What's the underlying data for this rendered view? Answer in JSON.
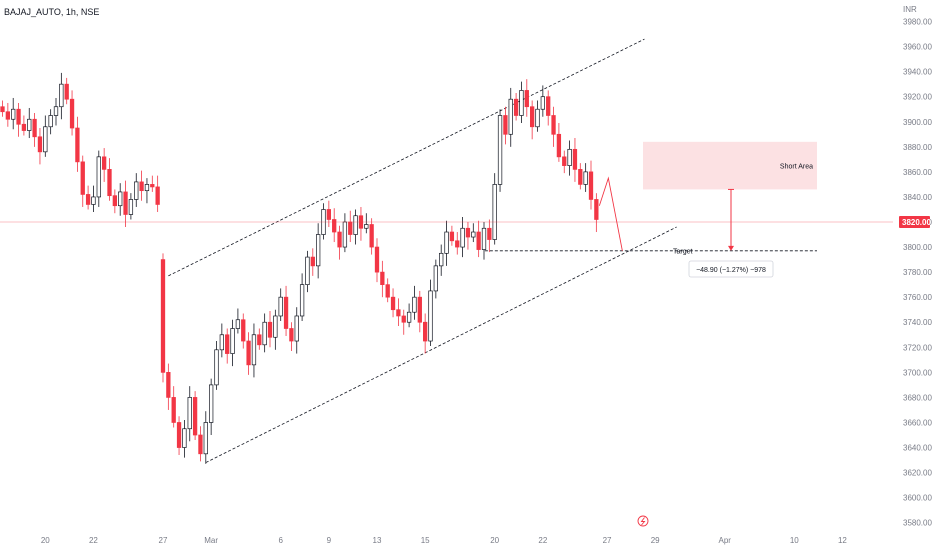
{
  "header": {
    "symbol": "BAJAJ_AUTO, 1h, NSE",
    "currency": "INR"
  },
  "colors": {
    "up": "#ffffff",
    "up_border": "#131722",
    "down": "#f23645",
    "zone": "#fbd7da",
    "current": "#f23645"
  },
  "chart_data": {
    "type": "candlestick",
    "title": "BAJAJ_AUTO, 1h, NSE",
    "ylabel": "INR",
    "ylim": [
      3570,
      3990
    ],
    "y_ticks": [
      3980,
      3960,
      3940,
      3920,
      3900,
      3880,
      3860,
      3840,
      3820,
      3800,
      3780,
      3760,
      3740,
      3720,
      3700,
      3680,
      3660,
      3640,
      3620,
      3600,
      3580
    ],
    "y_tick_labels": [
      "3980.00",
      "3960.00",
      "3940.00",
      "3920.00",
      "3900.00",
      "3880.00",
      "3860.00",
      "3840.00",
      "3820.00",
      "3800.00",
      "3780.00",
      "3760.00",
      "3740.00",
      "3720.00",
      "3700.00",
      "3680.00",
      "3660.00",
      "3640.00",
      "3620.00",
      "3600.00",
      "3580.00"
    ],
    "x_tick_labels": [
      "20",
      "22",
      "27",
      "Mar",
      "6",
      "9",
      "13",
      "15",
      "20",
      "22",
      "27",
      "29",
      "Apr",
      "10",
      "12"
    ],
    "x_tick_index": [
      8,
      17,
      30,
      39,
      52,
      61,
      70,
      79,
      92,
      101,
      113,
      122,
      135,
      148,
      157
    ],
    "current_price": 3820,
    "current_price_label": "3820.00",
    "annotations": {
      "zone_label": "Short Area",
      "zone_range": [
        3846,
        3884
      ],
      "target_label": "Target",
      "target_price": 3797,
      "measure_label": "−48.90 (−1.27%) −978"
    },
    "channel": {
      "upper": {
        "from": [
          31,
          3777
        ],
        "to": [
          120,
          3966
        ]
      },
      "lower": {
        "from": [
          38,
          3628
        ],
        "to": [
          126,
          3816
        ]
      }
    },
    "candles": [
      [
        3912,
        3908
      ],
      [
        3908,
        3902
      ],
      [
        3902,
        3910
      ],
      [
        3910,
        3898
      ],
      [
        3898,
        3893
      ],
      [
        3893,
        3902
      ],
      [
        3902,
        3888
      ],
      [
        3888,
        3876
      ],
      [
        3876,
        3896
      ],
      [
        3896,
        3905
      ],
      [
        3905,
        3912
      ],
      [
        3912,
        3930
      ],
      [
        3930,
        3918
      ],
      [
        3918,
        3895
      ],
      [
        3895,
        3868
      ],
      [
        3868,
        3842
      ],
      [
        3842,
        3834
      ],
      [
        3834,
        3840
      ],
      [
        3840,
        3872
      ],
      [
        3872,
        3862
      ],
      [
        3862,
        3841
      ],
      [
        3841,
        3833
      ],
      [
        3833,
        3844
      ],
      [
        3844,
        3826
      ],
      [
        3826,
        3838
      ],
      [
        3838,
        3852
      ],
      [
        3852,
        3845
      ],
      [
        3845,
        3850
      ],
      [
        3850,
        3848
      ],
      [
        3848,
        3834
      ],
      [
        3790,
        3700
      ],
      [
        3700,
        3680
      ],
      [
        3680,
        3660
      ],
      [
        3660,
        3640
      ],
      [
        3640,
        3655
      ],
      [
        3655,
        3680
      ],
      [
        3680,
        3650
      ],
      [
        3650,
        3635
      ],
      [
        3635,
        3660
      ],
      [
        3660,
        3690
      ],
      [
        3690,
        3718
      ],
      [
        3718,
        3730
      ],
      [
        3730,
        3715
      ],
      [
        3715,
        3735
      ],
      [
        3735,
        3742
      ],
      [
        3742,
        3725
      ],
      [
        3725,
        3706
      ],
      [
        3706,
        3730
      ],
      [
        3730,
        3722
      ],
      [
        3722,
        3740
      ],
      [
        3740,
        3728
      ],
      [
        3728,
        3745
      ],
      [
        3745,
        3760
      ],
      [
        3760,
        3735
      ],
      [
        3735,
        3725
      ],
      [
        3725,
        3745
      ],
      [
        3745,
        3770
      ],
      [
        3770,
        3792
      ],
      [
        3792,
        3785
      ],
      [
        3785,
        3810
      ],
      [
        3810,
        3830
      ],
      [
        3830,
        3822
      ],
      [
        3822,
        3812
      ],
      [
        3812,
        3800
      ],
      [
        3800,
        3820
      ],
      [
        3820,
        3810
      ],
      [
        3810,
        3825
      ],
      [
        3825,
        3815
      ],
      [
        3815,
        3818
      ],
      [
        3818,
        3800
      ],
      [
        3800,
        3780
      ],
      [
        3780,
        3770
      ],
      [
        3770,
        3760
      ],
      [
        3760,
        3750
      ],
      [
        3750,
        3745
      ],
      [
        3745,
        3740
      ],
      [
        3740,
        3748
      ],
      [
        3748,
        3760
      ],
      [
        3760,
        3740
      ],
      [
        3740,
        3725
      ],
      [
        3725,
        3765
      ],
      [
        3765,
        3785
      ],
      [
        3785,
        3795
      ],
      [
        3795,
        3812
      ],
      [
        3812,
        3805
      ],
      [
        3805,
        3800
      ],
      [
        3800,
        3815
      ],
      [
        3815,
        3808
      ],
      [
        3808,
        3812
      ],
      [
        3812,
        3798
      ],
      [
        3798,
        3815
      ],
      [
        3815,
        3806
      ],
      [
        3806,
        3850
      ],
      [
        3850,
        3905
      ],
      [
        3905,
        3890
      ],
      [
        3890,
        3918
      ],
      [
        3918,
        3905
      ],
      [
        3905,
        3925
      ],
      [
        3925,
        3912
      ],
      [
        3912,
        3896
      ],
      [
        3896,
        3910
      ],
      [
        3910,
        3920
      ],
      [
        3920,
        3905
      ],
      [
        3905,
        3890
      ],
      [
        3890,
        3872
      ],
      [
        3872,
        3865
      ],
      [
        3865,
        3878
      ],
      [
        3878,
        3862
      ],
      [
        3862,
        3850
      ],
      [
        3850,
        3860
      ],
      [
        3860,
        3838
      ],
      [
        3838,
        3822
      ]
    ]
  }
}
